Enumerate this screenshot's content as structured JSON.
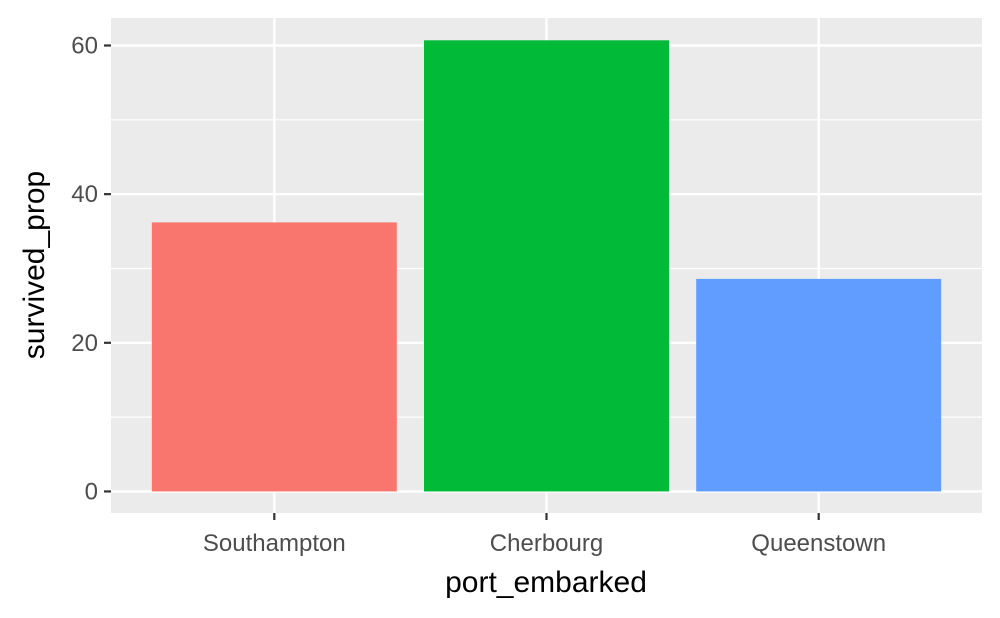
{
  "chart_data": {
    "type": "bar",
    "title": "",
    "xlabel": "port_embarked",
    "ylabel": "survived_prop",
    "categories": [
      "Southampton",
      "Cherbourg",
      "Queenstown"
    ],
    "values": [
      36.2,
      60.7,
      28.6
    ],
    "colors": [
      "#F8766D",
      "#00BA38",
      "#619CFF"
    ],
    "ylim": [
      -2.9,
      63.7
    ],
    "yticks": [
      0,
      20,
      40,
      60
    ],
    "yminor": [
      10,
      30,
      50
    ],
    "grid": true,
    "legend": "none",
    "panel_color": "#EBEBEB",
    "grid_color": "#FFFFFF"
  }
}
